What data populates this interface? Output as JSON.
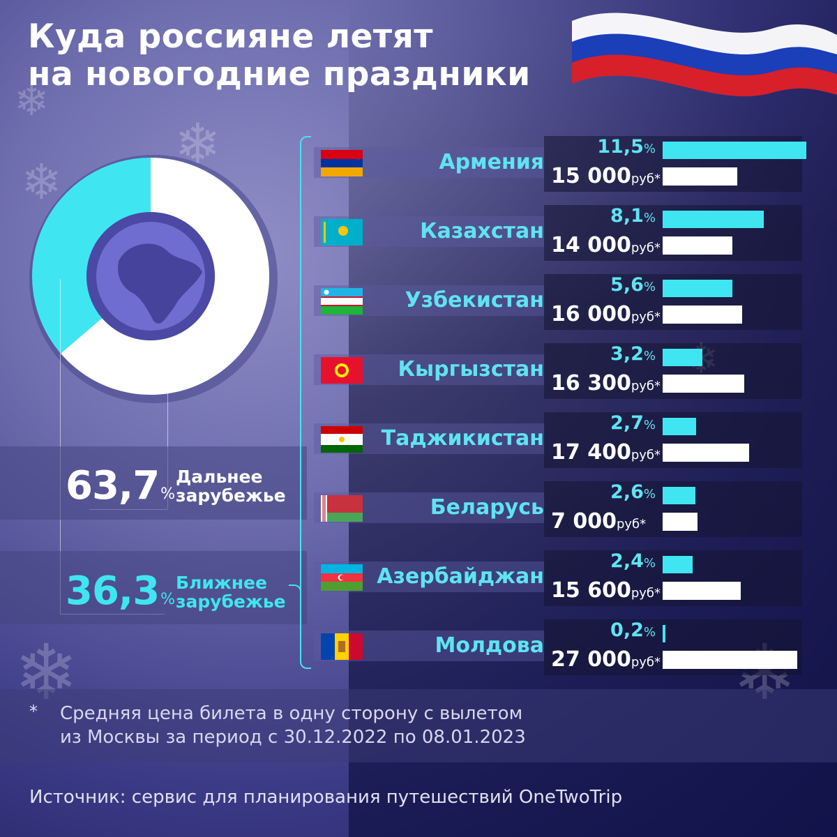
{
  "title": {
    "line1": "Куда россияне летят",
    "line2": "на новогодние праздники"
  },
  "colors": {
    "cyan": "#3fe6f2",
    "white": "#ffffff",
    "flag_white": "#ffffff",
    "flag_blue": "#1b3fb8",
    "flag_red": "#d8202a"
  },
  "donut": {
    "far": {
      "value": "63,7",
      "unit": "%",
      "label1": "Дальнее",
      "label2": "зарубежье"
    },
    "near": {
      "value": "36,3",
      "unit": "%",
      "label1": "Ближнее",
      "label2": "зарубежье"
    }
  },
  "chart_data": {
    "type": "bar",
    "categories": [
      "Армения",
      "Казахстан",
      "Узбекистан",
      "Кыргызстан",
      "Таджикистан",
      "Беларусь",
      "Азербайджан",
      "Молдова"
    ],
    "series": [
      {
        "values": [
          11.5,
          8.1,
          5.6,
          3.2,
          2.7,
          2.6,
          2.4,
          0.2
        ]
      },
      {
        "values": [
          15000,
          14000,
          16000,
          16300,
          17400,
          7000,
          15600,
          27000
        ]
      }
    ],
    "pie": [
      {
        "label": "Дальнее зарубежье",
        "value": 63.7
      },
      {
        "label": "Ближнее зарубежье",
        "value": 36.3
      }
    ]
  },
  "rows": [
    {
      "name": "Армения",
      "pct": "11,5",
      "price": "15 000",
      "flag": "armenia-flag-icon"
    },
    {
      "name": "Казахстан",
      "pct": "8,1",
      "price": "14 000",
      "flag": "kazakhstan-flag-icon"
    },
    {
      "name": "Узбекистан",
      "pct": "5,6",
      "price": "16 000",
      "flag": "uzbekistan-flag-icon"
    },
    {
      "name": "Кыргызстан",
      "pct": "3,2",
      "price": "16 300",
      "flag": "kyrgyzstan-flag-icon"
    },
    {
      "name": "Таджикистан",
      "pct": "2,7",
      "price": "17 400",
      "flag": "tajikistan-flag-icon"
    },
    {
      "name": "Беларусь",
      "pct": "2,6",
      "price": "7 000",
      "flag": "belarus-flag-icon"
    },
    {
      "name": "Азербайджан",
      "pct": "2,4",
      "price": "15 600",
      "flag": "azerbaijan-flag-icon"
    },
    {
      "name": "Молдова",
      "pct": "0,2",
      "price": "27 000",
      "flag": "moldova-flag-icon"
    }
  ],
  "units": {
    "pct": "%",
    "price": "руб*"
  },
  "footnote": {
    "star": "*",
    "line1": "Средняя цена билета в одну сторону с вылетом",
    "line2": "из Москвы за период с 30.12.2022 по 08.01.2023"
  },
  "source": "Источник: сервис для планирования путешествий OneTwoTrip"
}
